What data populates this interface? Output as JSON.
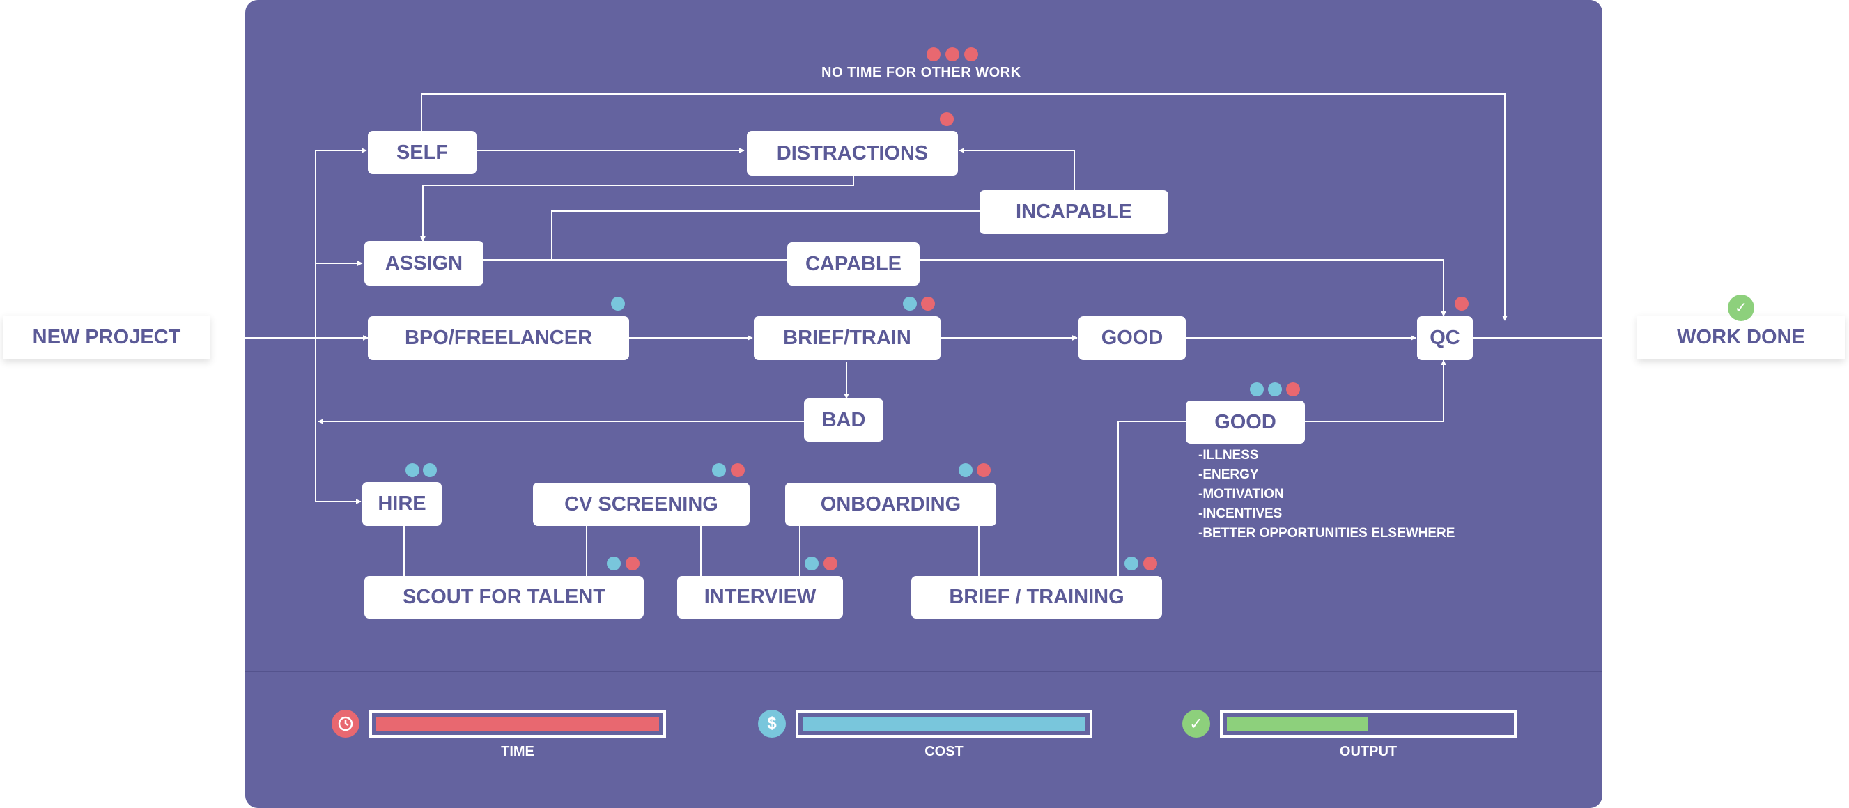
{
  "flow": {
    "new_project": "NEW PROJECT",
    "work_done": "WORK DONE",
    "no_time_label": "NO TIME FOR OTHER WORK",
    "nodes": {
      "self": "SELF",
      "distractions": "DISTRACTIONS",
      "incapable": "INCAPABLE",
      "assign": "ASSIGN",
      "capable": "CAPABLE",
      "bpo_freelancer": "BPO/FREELANCER",
      "brief_train": "BRIEF/TRAIN",
      "good_top": "GOOD",
      "qc": "QC",
      "bad": "BAD",
      "good_lower": "GOOD",
      "hire": "HIRE",
      "cv_screening": "CV SCREENING",
      "onboarding": "ONBOARDING",
      "scout_for_talent": "SCOUT FOR TALENT",
      "interview": "INTERVIEW",
      "brief_training": "BRIEF / TRAINING"
    },
    "risk_factors": [
      "-ILLNESS",
      "-ENERGY",
      "-MOTIVATION",
      "-INCENTIVES",
      "-BETTER OPPORTUNITIES ELSEWHERE"
    ],
    "colors": {
      "panel": "#64639f",
      "time_dot": "#e86870",
      "cost_dot": "#79c6dc",
      "output_dot": "#8dd07c",
      "node_text": "#5b5a97"
    }
  },
  "meters": [
    {
      "label": "TIME",
      "icon": "clock-icon",
      "fill_fraction": 1.0,
      "color": "#e86870"
    },
    {
      "label": "COST",
      "icon": "dollar-icon",
      "fill_fraction": 1.0,
      "color": "#79c6dc"
    },
    {
      "label": "OUTPUT",
      "icon": "check-icon",
      "fill_fraction": 0.5,
      "color": "#8dd07c"
    }
  ]
}
